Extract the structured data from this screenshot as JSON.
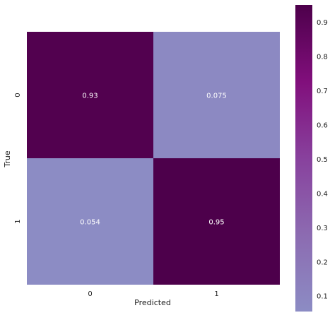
{
  "chart_data": {
    "type": "heatmap",
    "title": "",
    "xlabel": "Predicted",
    "ylabel": "True",
    "x_categories": [
      "0",
      "1"
    ],
    "y_categories": [
      "0",
      "1"
    ],
    "values": [
      [
        0.93,
        0.075
      ],
      [
        0.054,
        0.95
      ]
    ],
    "cell_labels": [
      [
        "0.93",
        "0.075"
      ],
      [
        "0.054",
        "0.95"
      ]
    ],
    "colorbar": {
      "range": [
        0.054,
        0.95
      ],
      "ticks": [
        0.1,
        0.2,
        0.3,
        0.4,
        0.5,
        0.6,
        0.7,
        0.8,
        0.9
      ],
      "tick_labels": [
        "0.1",
        "0.2",
        "0.3",
        "0.4",
        "0.5",
        "0.6",
        "0.7",
        "0.8",
        "0.9"
      ],
      "colors": [
        "#8c8cc4",
        "#8c6bb1",
        "#88419d",
        "#810f7c",
        "#4d004b"
      ]
    },
    "grid": false
  }
}
